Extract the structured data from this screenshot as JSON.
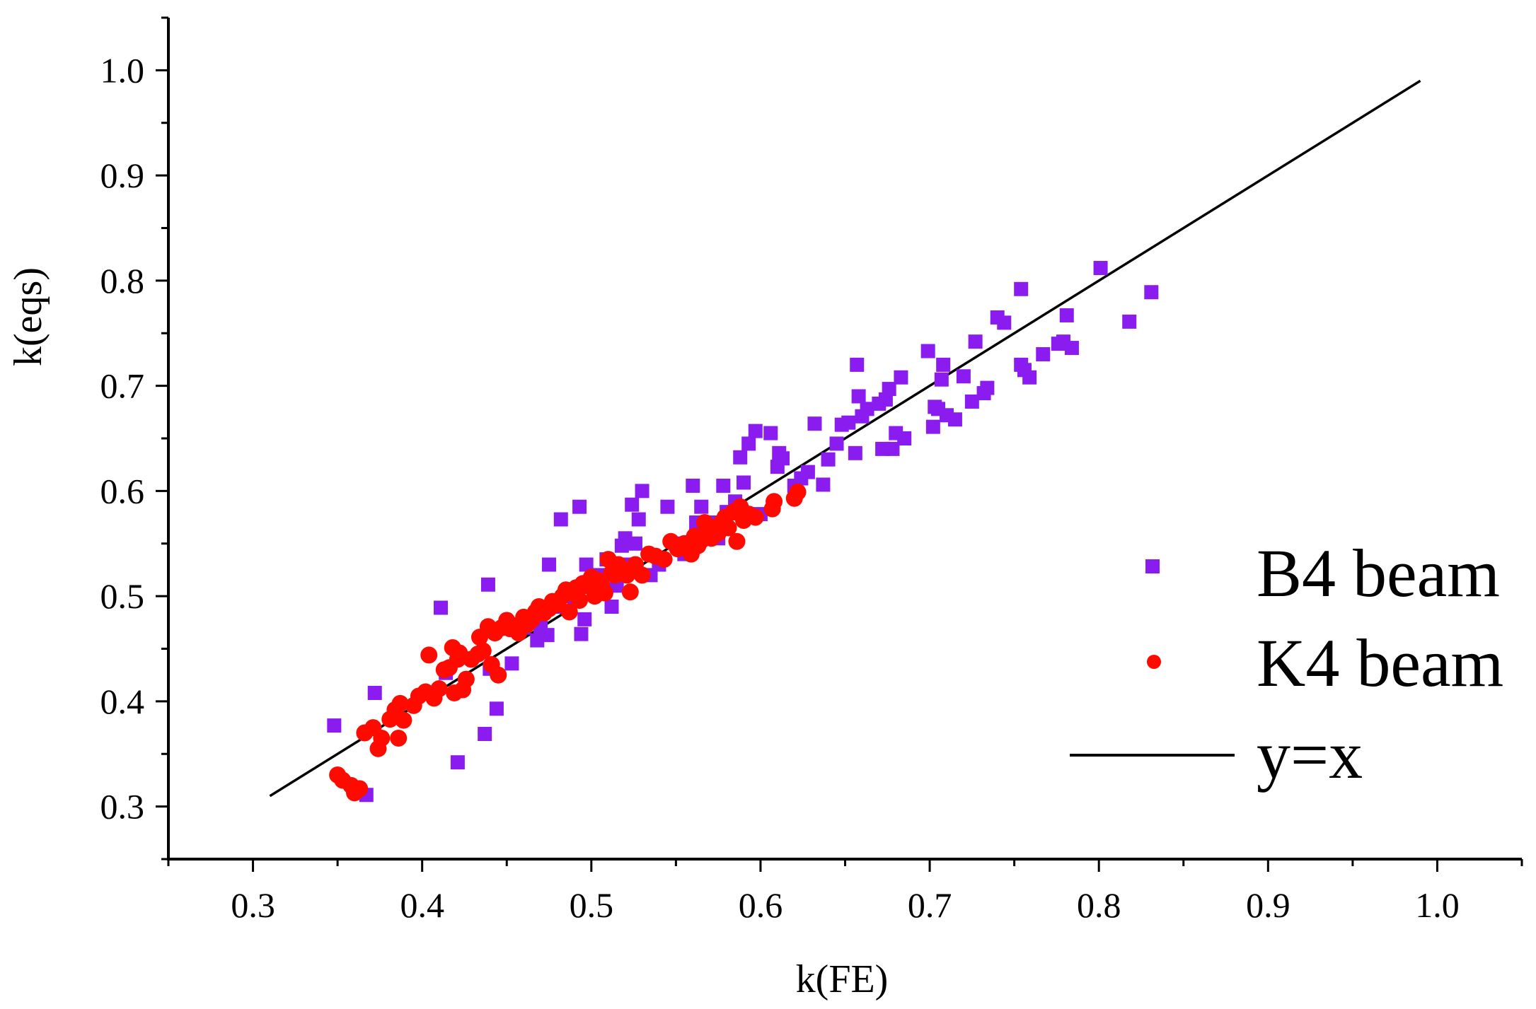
{
  "chart_data": {
    "type": "scatter",
    "title": "",
    "xlabel": "k(FE)",
    "ylabel": "k(eqs)",
    "xlim": [
      0.25,
      1.05
    ],
    "ylim": [
      0.25,
      1.05
    ],
    "xticks": [
      "0.3",
      "0.4",
      "0.5",
      "0.6",
      "0.7",
      "0.8",
      "0.9",
      "1.0"
    ],
    "yticks": [
      "0.3",
      "0.4",
      "0.5",
      "0.6",
      "0.7",
      "0.8",
      "0.9",
      "1.0"
    ],
    "grid": false,
    "legend_position": "bottom-right",
    "series": [
      {
        "name": "B4 beam",
        "marker": "square",
        "color": "#8a1cf0",
        "points": [
          [
            0.348,
            0.377
          ],
          [
            0.367,
            0.311
          ],
          [
            0.372,
            0.408
          ],
          [
            0.411,
            0.489
          ],
          [
            0.414,
            0.427
          ],
          [
            0.421,
            0.342
          ],
          [
            0.437,
            0.369
          ],
          [
            0.439,
            0.511
          ],
          [
            0.44,
            0.431
          ],
          [
            0.444,
            0.393
          ],
          [
            0.453,
            0.436
          ],
          [
            0.46,
            0.47
          ],
          [
            0.465,
            0.48
          ],
          [
            0.468,
            0.458
          ],
          [
            0.47,
            0.47
          ],
          [
            0.474,
            0.463
          ],
          [
            0.475,
            0.53
          ],
          [
            0.481,
            0.49
          ],
          [
            0.482,
            0.573
          ],
          [
            0.485,
            0.5
          ],
          [
            0.49,
            0.497
          ],
          [
            0.493,
            0.585
          ],
          [
            0.494,
            0.464
          ],
          [
            0.496,
            0.478
          ],
          [
            0.497,
            0.53
          ],
          [
            0.5,
            0.51
          ],
          [
            0.505,
            0.52
          ],
          [
            0.509,
            0.535
          ],
          [
            0.512,
            0.49
          ],
          [
            0.515,
            0.51
          ],
          [
            0.518,
            0.548
          ],
          [
            0.52,
            0.555
          ],
          [
            0.522,
            0.53
          ],
          [
            0.524,
            0.587
          ],
          [
            0.526,
            0.55
          ],
          [
            0.528,
            0.573
          ],
          [
            0.53,
            0.6
          ],
          [
            0.535,
            0.52
          ],
          [
            0.54,
            0.53
          ],
          [
            0.545,
            0.585
          ],
          [
            0.55,
            0.55
          ],
          [
            0.555,
            0.54
          ],
          [
            0.56,
            0.605
          ],
          [
            0.562,
            0.57
          ],
          [
            0.565,
            0.585
          ],
          [
            0.568,
            0.56
          ],
          [
            0.572,
            0.57
          ],
          [
            0.575,
            0.555
          ],
          [
            0.578,
            0.605
          ],
          [
            0.58,
            0.58
          ],
          [
            0.585,
            0.59
          ],
          [
            0.588,
            0.632
          ],
          [
            0.59,
            0.608
          ],
          [
            0.593,
            0.645
          ],
          [
            0.597,
            0.657
          ],
          [
            0.6,
            0.578
          ],
          [
            0.606,
            0.655
          ],
          [
            0.61,
            0.623
          ],
          [
            0.611,
            0.636
          ],
          [
            0.613,
            0.631
          ],
          [
            0.62,
            0.605
          ],
          [
            0.624,
            0.612
          ],
          [
            0.628,
            0.618
          ],
          [
            0.632,
            0.664
          ],
          [
            0.637,
            0.606
          ],
          [
            0.64,
            0.63
          ],
          [
            0.645,
            0.645
          ],
          [
            0.648,
            0.663
          ],
          [
            0.652,
            0.665
          ],
          [
            0.656,
            0.636
          ],
          [
            0.657,
            0.72
          ],
          [
            0.658,
            0.69
          ],
          [
            0.66,
            0.671
          ],
          [
            0.663,
            0.678
          ],
          [
            0.67,
            0.683
          ],
          [
            0.672,
            0.64
          ],
          [
            0.674,
            0.687
          ],
          [
            0.676,
            0.697
          ],
          [
            0.678,
            0.64
          ],
          [
            0.68,
            0.655
          ],
          [
            0.683,
            0.708
          ],
          [
            0.685,
            0.65
          ],
          [
            0.699,
            0.733
          ],
          [
            0.702,
            0.661
          ],
          [
            0.703,
            0.68
          ],
          [
            0.705,
            0.678
          ],
          [
            0.707,
            0.706
          ],
          [
            0.708,
            0.72
          ],
          [
            0.71,
            0.672
          ],
          [
            0.715,
            0.668
          ],
          [
            0.72,
            0.709
          ],
          [
            0.725,
            0.685
          ],
          [
            0.727,
            0.742
          ],
          [
            0.732,
            0.693
          ],
          [
            0.734,
            0.698
          ],
          [
            0.74,
            0.765
          ],
          [
            0.744,
            0.76
          ],
          [
            0.754,
            0.792
          ],
          [
            0.754,
            0.72
          ],
          [
            0.756,
            0.715
          ],
          [
            0.759,
            0.708
          ],
          [
            0.767,
            0.73
          ],
          [
            0.776,
            0.74
          ],
          [
            0.779,
            0.742
          ],
          [
            0.781,
            0.767
          ],
          [
            0.784,
            0.736
          ],
          [
            0.801,
            0.812
          ],
          [
            0.818,
            0.761
          ],
          [
            0.831,
            0.789
          ]
        ]
      },
      {
        "name": "K4 beam",
        "marker": "circle",
        "color": "#ff0a00",
        "points": [
          [
            0.35,
            0.33
          ],
          [
            0.353,
            0.325
          ],
          [
            0.358,
            0.32
          ],
          [
            0.36,
            0.313
          ],
          [
            0.363,
            0.317
          ],
          [
            0.366,
            0.37
          ],
          [
            0.371,
            0.375
          ],
          [
            0.374,
            0.355
          ],
          [
            0.376,
            0.365
          ],
          [
            0.381,
            0.383
          ],
          [
            0.384,
            0.392
          ],
          [
            0.386,
            0.365
          ],
          [
            0.387,
            0.398
          ],
          [
            0.389,
            0.382
          ],
          [
            0.395,
            0.396
          ],
          [
            0.398,
            0.405
          ],
          [
            0.402,
            0.409
          ],
          [
            0.404,
            0.444
          ],
          [
            0.407,
            0.403
          ],
          [
            0.41,
            0.412
          ],
          [
            0.413,
            0.43
          ],
          [
            0.416,
            0.432
          ],
          [
            0.418,
            0.451
          ],
          [
            0.419,
            0.408
          ],
          [
            0.421,
            0.44
          ],
          [
            0.422,
            0.446
          ],
          [
            0.424,
            0.411
          ],
          [
            0.426,
            0.421
          ],
          [
            0.429,
            0.44
          ],
          [
            0.433,
            0.445
          ],
          [
            0.434,
            0.461
          ],
          [
            0.436,
            0.448
          ],
          [
            0.439,
            0.471
          ],
          [
            0.441,
            0.435
          ],
          [
            0.443,
            0.465
          ],
          [
            0.445,
            0.425
          ],
          [
            0.447,
            0.47
          ],
          [
            0.45,
            0.477
          ],
          [
            0.452,
            0.469
          ],
          [
            0.454,
            0.472
          ],
          [
            0.457,
            0.465
          ],
          [
            0.46,
            0.48
          ],
          [
            0.462,
            0.473
          ],
          [
            0.465,
            0.478
          ],
          [
            0.467,
            0.485
          ],
          [
            0.469,
            0.49
          ],
          [
            0.472,
            0.484
          ],
          [
            0.475,
            0.488
          ],
          [
            0.477,
            0.495
          ],
          [
            0.48,
            0.492
          ],
          [
            0.483,
            0.5
          ],
          [
            0.485,
            0.506
          ],
          [
            0.487,
            0.485
          ],
          [
            0.489,
            0.503
          ],
          [
            0.491,
            0.508
          ],
          [
            0.493,
            0.496
          ],
          [
            0.495,
            0.512
          ],
          [
            0.497,
            0.51
          ],
          [
            0.5,
            0.518
          ],
          [
            0.502,
            0.5
          ],
          [
            0.504,
            0.515
          ],
          [
            0.506,
            0.511
          ],
          [
            0.508,
            0.503
          ],
          [
            0.51,
            0.535
          ],
          [
            0.512,
            0.522
          ],
          [
            0.514,
            0.52
          ],
          [
            0.516,
            0.53
          ],
          [
            0.518,
            0.525
          ],
          [
            0.521,
            0.52
          ],
          [
            0.523,
            0.504
          ],
          [
            0.526,
            0.53
          ],
          [
            0.53,
            0.52
          ],
          [
            0.534,
            0.54
          ],
          [
            0.538,
            0.538
          ],
          [
            0.543,
            0.535
          ],
          [
            0.547,
            0.552
          ],
          [
            0.551,
            0.545
          ],
          [
            0.555,
            0.55
          ],
          [
            0.557,
            0.545
          ],
          [
            0.559,
            0.54
          ],
          [
            0.561,
            0.557
          ],
          [
            0.563,
            0.548
          ],
          [
            0.565,
            0.553
          ],
          [
            0.567,
            0.57
          ],
          [
            0.569,
            0.56
          ],
          [
            0.571,
            0.555
          ],
          [
            0.573,
            0.565
          ],
          [
            0.575,
            0.56
          ],
          [
            0.577,
            0.57
          ],
          [
            0.579,
            0.575
          ],
          [
            0.581,
            0.565
          ],
          [
            0.584,
            0.58
          ],
          [
            0.586,
            0.552
          ],
          [
            0.588,
            0.585
          ],
          [
            0.59,
            0.572
          ],
          [
            0.593,
            0.578
          ],
          [
            0.597,
            0.575
          ],
          [
            0.607,
            0.583
          ],
          [
            0.608,
            0.59
          ],
          [
            0.62,
            0.593
          ],
          [
            0.622,
            0.599
          ]
        ]
      },
      {
        "name": "y=x",
        "marker": "line",
        "color": "#000000",
        "x": [
          0.31,
          0.99
        ],
        "y": [
          0.31,
          0.99
        ]
      }
    ]
  }
}
